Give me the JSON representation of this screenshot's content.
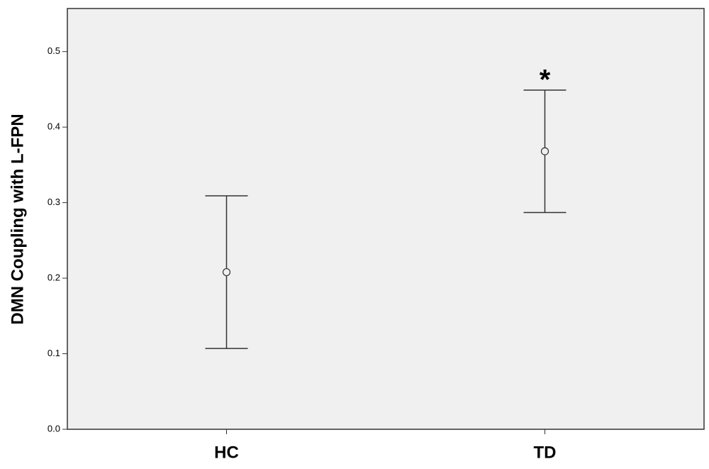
{
  "chart_data": {
    "type": "errorbar",
    "y_label": "DMN Coupling with L-FPN",
    "categories": [
      "HC",
      "TD"
    ],
    "values": [
      0.208,
      0.368
    ],
    "errors": [
      0.101,
      0.081
    ],
    "color": "#333333",
    "annotation": "*",
    "ylim": [
      0,
      0.557
    ],
    "yticks": [
      {
        "value": 0,
        "label": "0.0"
      },
      0.1,
      0.2,
      0.3,
      0.4,
      0.5
    ],
    "grid": false
  }
}
